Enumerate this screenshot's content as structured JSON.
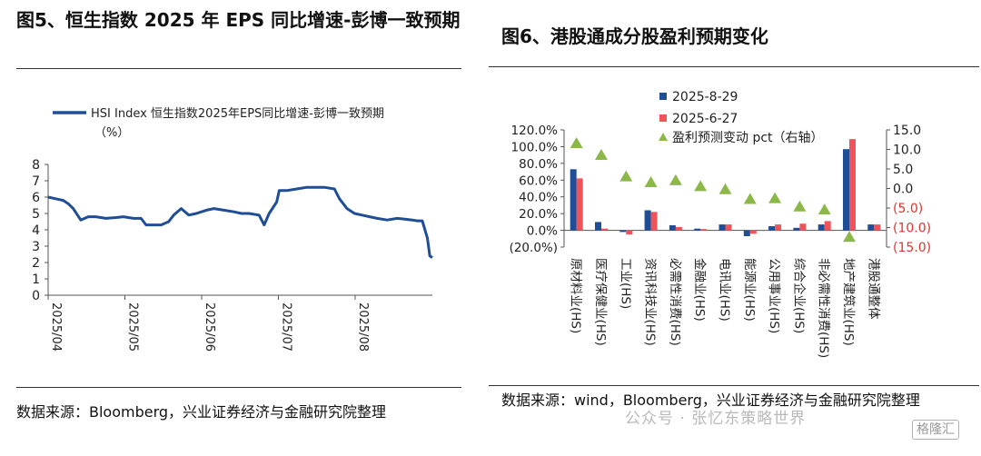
{
  "left": {
    "title": "图5、恒生指数 2025 年 EPS 同比增速-彭博一致预期",
    "source": "数据来源：Bloomberg，兴业证券经济与金融研究院整理"
  },
  "right": {
    "title": "图6、港股通成分股盈利预期变化",
    "source": "数据来源：wind，Bloomberg，兴业证券经济与金融研究院整理"
  },
  "watermark": "公众号 · 张忆东策略世界",
  "logo_text": "格隆汇",
  "colors": {
    "line": "#1f4e96",
    "navy": "#1f4e96",
    "red": "#f0545a",
    "green": "#8cb84a",
    "negative_axis": "#e0332e"
  },
  "chart_data": [
    {
      "type": "line",
      "title": "",
      "legend": {
        "label": "HSI Index 恒生指数2025年EPS同比增速-彭博一致预期",
        "unit": "（%）",
        "placement": "top-left"
      },
      "ylim": [
        0,
        8
      ],
      "yticks": [
        "0",
        "1",
        "2",
        "3",
        "4",
        "5",
        "6",
        "7",
        "8"
      ],
      "xticks": [
        "2025/04",
        "2025/05",
        "2025/06",
        "2025/07",
        "2025/08"
      ],
      "x_range": [
        "2025-04-01",
        "2025-09-01"
      ],
      "grid": false,
      "series": [
        {
          "name": "HSI Index 恒生指数2025年EPS同比增速-彭博一致预期",
          "points": [
            [
              "2025-04-01",
              6.0
            ],
            [
              "2025-04-04",
              5.9
            ],
            [
              "2025-04-07",
              5.8
            ],
            [
              "2025-04-09",
              5.6
            ],
            [
              "2025-04-11",
              5.3
            ],
            [
              "2025-04-14",
              4.6
            ],
            [
              "2025-04-17",
              4.8
            ],
            [
              "2025-04-20",
              4.8
            ],
            [
              "2025-04-24",
              4.7
            ],
            [
              "2025-04-28",
              4.75
            ],
            [
              "2025-05-01",
              4.8
            ],
            [
              "2025-05-05",
              4.7
            ],
            [
              "2025-05-08",
              4.7
            ],
            [
              "2025-05-10",
              4.3
            ],
            [
              "2025-05-13",
              4.3
            ],
            [
              "2025-05-16",
              4.3
            ],
            [
              "2025-05-19",
              4.5
            ],
            [
              "2025-05-21",
              4.9
            ],
            [
              "2025-05-24",
              5.3
            ],
            [
              "2025-05-27",
              4.9
            ],
            [
              "2025-05-30",
              5.0
            ],
            [
              "2025-06-03",
              5.2
            ],
            [
              "2025-06-06",
              5.3
            ],
            [
              "2025-06-10",
              5.2
            ],
            [
              "2025-06-14",
              5.1
            ],
            [
              "2025-06-17",
              5.0
            ],
            [
              "2025-06-20",
              5.0
            ],
            [
              "2025-06-24",
              4.9
            ],
            [
              "2025-06-26",
              4.3
            ],
            [
              "2025-06-28",
              5.0
            ],
            [
              "2025-07-01",
              5.7
            ],
            [
              "2025-07-02",
              6.4
            ],
            [
              "2025-07-05",
              6.4
            ],
            [
              "2025-07-09",
              6.5
            ],
            [
              "2025-07-13",
              6.6
            ],
            [
              "2025-07-17",
              6.6
            ],
            [
              "2025-07-20",
              6.6
            ],
            [
              "2025-07-24",
              6.5
            ],
            [
              "2025-07-26",
              5.9
            ],
            [
              "2025-07-29",
              5.3
            ],
            [
              "2025-08-01",
              5.0
            ],
            [
              "2025-08-04",
              4.9
            ],
            [
              "2025-08-07",
              4.8
            ],
            [
              "2025-08-10",
              4.7
            ],
            [
              "2025-08-14",
              4.6
            ],
            [
              "2025-08-18",
              4.7
            ],
            [
              "2025-08-21",
              4.65
            ],
            [
              "2025-08-24",
              4.6
            ],
            [
              "2025-08-26",
              4.55
            ],
            [
              "2025-08-28",
              4.55
            ],
            [
              "2025-08-30",
              3.5
            ],
            [
              "2025-08-31",
              2.4
            ],
            [
              "2025-09-01",
              2.3
            ]
          ]
        }
      ]
    },
    {
      "type": "bar",
      "title": "",
      "categories": [
        "原材料业(HS)",
        "医疗保健业(HS)",
        "工业(HS)",
        "资讯科技业(HS)",
        "必需性消费(HS)",
        "金融业(HS)",
        "电讯业(HS)",
        "能源业(HS)",
        "公用事业(HS)",
        "综合企业(HS)",
        "非必需性消费(HS)",
        "地产建筑业(HS)",
        "港股通整体"
      ],
      "ylim": [
        -20,
        120
      ],
      "yticks": [
        "(20.0%)",
        "0.0%",
        "20.0%",
        "40.0%",
        "60.0%",
        "80.0%",
        "100.0%",
        "120.0%"
      ],
      "y2lim": [
        -15,
        15
      ],
      "y2ticks": [
        "(15.0)",
        "(10.0)",
        "(5.0)",
        "0.0",
        "5.0",
        "10.0",
        "15.0"
      ],
      "y2_negative_color": "#e0332e",
      "legend_placement": "top-left",
      "grid": false,
      "series": [
        {
          "name": "2025-8-29",
          "kind": "bar",
          "axis": "left",
          "values": [
            73,
            10,
            -2,
            24,
            6,
            2,
            7,
            -7,
            5,
            3,
            7,
            97,
            7
          ]
        },
        {
          "name": "2025-6-27",
          "kind": "bar",
          "axis": "left",
          "values": [
            62,
            2,
            -5,
            22,
            4,
            1.5,
            7,
            -4,
            7,
            8,
            11,
            109,
            7
          ]
        },
        {
          "name": "盈利预测变动 pct（右轴）",
          "kind": "marker",
          "axis": "right",
          "values": [
            11.5,
            8.5,
            3.0,
            1.5,
            2.0,
            0.5,
            -0.3,
            -2.8,
            -2.6,
            -4.7,
            -5.5,
            -12.5,
            0
          ]
        }
      ]
    }
  ]
}
